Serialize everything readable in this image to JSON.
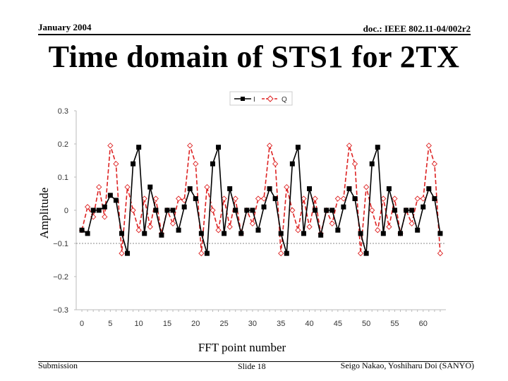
{
  "header": {
    "date": "January 2004",
    "doc_id": "doc.: IEEE 802.11-04/002r2"
  },
  "slide_title": "Time domain of STS1 for 2TX",
  "footer": {
    "left": "Submission",
    "center": "Slide 18",
    "right": "Seigo Nakao, Yoshiharu Doi (SANYO)"
  },
  "colors": {
    "series_I": "#000000",
    "series_Q": "#dd2222",
    "reference_line": "#888888",
    "plot_border": "#bbbbbb"
  },
  "chart_data": {
    "type": "line",
    "xlabel": "FFT point number",
    "ylabel": "Amplitude",
    "xlim": [
      -1,
      64
    ],
    "ylim": [
      -0.3,
      0.3
    ],
    "xticks": [
      "0",
      "5",
      "10",
      "15",
      "20",
      "25",
      "30",
      "35",
      "40",
      "45",
      "50",
      "55",
      "60"
    ],
    "yticks": [
      "0.3",
      "0.2",
      "0.1",
      "0",
      "−0.1",
      "−0.2",
      "−0.3"
    ],
    "reference_y": -0.1,
    "legend": {
      "position": "top-center",
      "entries": [
        "I",
        "Q"
      ]
    },
    "series": [
      {
        "name": "I",
        "style": "solid-square",
        "x": [
          0,
          1,
          2,
          3,
          4,
          5,
          6,
          7,
          8,
          9,
          10,
          11,
          12,
          13,
          14,
          15,
          16,
          17,
          18,
          19,
          20,
          21,
          22,
          23,
          24,
          25,
          26,
          27,
          28,
          29,
          30,
          31,
          32,
          33,
          34,
          35,
          36,
          37,
          38,
          39,
          40,
          41,
          42,
          43,
          44,
          45,
          46,
          47,
          48,
          49,
          50,
          51,
          52,
          53,
          54,
          55,
          56,
          57,
          58,
          59,
          60,
          61,
          62,
          63
        ],
        "values": [
          -0.06,
          -0.07,
          0.0,
          0.0,
          0.01,
          0.045,
          0.03,
          -0.07,
          -0.13,
          0.14,
          0.19,
          -0.07,
          0.07,
          0.0,
          -0.075,
          0.0,
          0.0,
          -0.06,
          0.01,
          0.065,
          0.035,
          -0.07,
          -0.13,
          0.14,
          0.19,
          -0.07,
          0.065,
          0.0,
          -0.07,
          0.0,
          0.0,
          -0.06,
          0.01,
          0.065,
          0.035,
          -0.07,
          -0.13,
          0.14,
          0.19,
          -0.07,
          0.065,
          0.0,
          -0.075,
          0.0,
          0.0,
          -0.06,
          0.01,
          0.065,
          0.035,
          -0.07,
          -0.13,
          0.14,
          0.19,
          -0.07,
          0.065,
          0.0,
          -0.07,
          0.0,
          0.0,
          -0.06,
          0.01,
          0.065,
          0.035,
          -0.07
        ]
      },
      {
        "name": "Q",
        "style": "dashed-diamond",
        "x": [
          0,
          1,
          2,
          3,
          4,
          5,
          6,
          7,
          8,
          9,
          10,
          11,
          12,
          13,
          14,
          15,
          16,
          17,
          18,
          19,
          20,
          21,
          22,
          23,
          24,
          25,
          26,
          27,
          28,
          29,
          30,
          31,
          32,
          33,
          34,
          35,
          36,
          37,
          38,
          39,
          40,
          41,
          42,
          43,
          44,
          45,
          46,
          47,
          48,
          49,
          50,
          51,
          52,
          53,
          54,
          55,
          56,
          57,
          58,
          59,
          60,
          61,
          62,
          63
        ],
        "values": [
          -0.06,
          0.01,
          -0.02,
          0.07,
          -0.02,
          0.195,
          0.14,
          -0.13,
          0.07,
          0.0,
          -0.06,
          0.035,
          -0.05,
          0.035,
          -0.07,
          0.0,
          -0.04,
          0.035,
          0.03,
          0.195,
          0.14,
          -0.13,
          0.07,
          0.0,
          -0.06,
          0.035,
          -0.05,
          0.035,
          -0.07,
          0.0,
          -0.04,
          0.035,
          0.035,
          0.195,
          0.14,
          -0.13,
          0.07,
          0.0,
          -0.06,
          0.035,
          -0.05,
          0.035,
          -0.07,
          0.0,
          -0.04,
          0.035,
          0.035,
          0.195,
          0.14,
          -0.13,
          0.07,
          0.0,
          -0.06,
          0.035,
          -0.05,
          0.035,
          -0.07,
          0.0,
          -0.04,
          0.035,
          0.035,
          0.195,
          0.14,
          -0.13
        ]
      }
    ]
  }
}
